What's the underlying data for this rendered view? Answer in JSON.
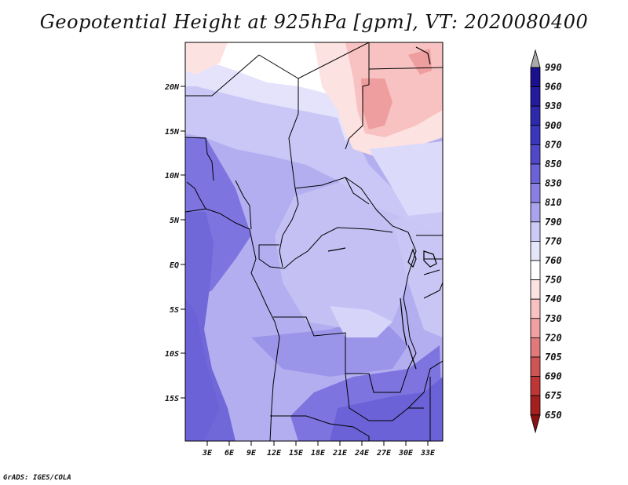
{
  "title": "Geopotential Height at 925hPa [gpm], VT: 2020080400",
  "credit": "GrADS: IGES/COLA",
  "map": {
    "variable": "Geopotential Height",
    "level": "925hPa",
    "units": "gpm",
    "valid_time": "2020080400",
    "lat_labels": [
      "20N",
      "15N",
      "10N",
      "5N",
      "EQ",
      "5S",
      "10S",
      "15S"
    ],
    "lon_labels": [
      "3E",
      "6E",
      "9E",
      "12E",
      "15E",
      "18E",
      "21E",
      "24E",
      "27E",
      "30E",
      "33E"
    ]
  },
  "colorbar": {
    "levels": [
      "990",
      "960",
      "930",
      "900",
      "870",
      "850",
      "830",
      "810",
      "790",
      "770",
      "760",
      "750",
      "740",
      "730",
      "720",
      "705",
      "690",
      "675",
      "650"
    ],
    "colors": [
      "#aaaaaa",
      "#1a0f8c",
      "#231a9e",
      "#2e28ad",
      "#3a36bd",
      "#5048c8",
      "#6a62d6",
      "#8880e2",
      "#aaa4ec",
      "#cccaf6",
      "#e6e6fb",
      "#ffffff",
      "#fde2e2",
      "#f8c2c2",
      "#f0a0a0",
      "#e07a7a",
      "#cf5454",
      "#be3636",
      "#a61f1f",
      "#8a1212"
    ]
  }
}
